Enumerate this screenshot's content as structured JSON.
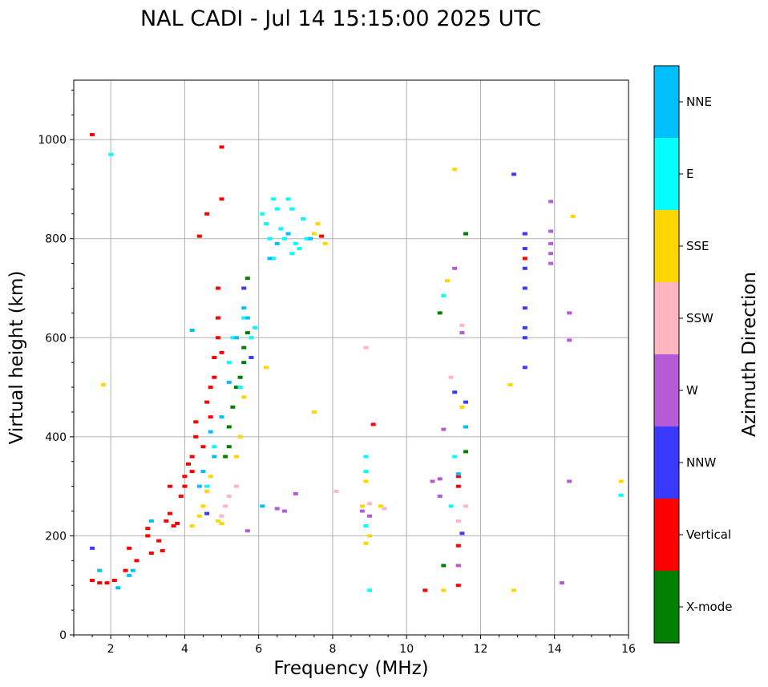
{
  "chart_data": {
    "type": "scatter",
    "title": "NAL CADI - Jul 14 15:15:00 2025 UTC",
    "xlabel": "Frequency (MHz)",
    "ylabel": "Virtual height (km)",
    "xlim": [
      1,
      16
    ],
    "ylim": [
      0,
      1120
    ],
    "xticks": [
      2,
      4,
      6,
      8,
      10,
      12,
      14,
      16
    ],
    "yticks": [
      0,
      200,
      400,
      600,
      800,
      1000
    ],
    "grid": true,
    "colorbar": {
      "label": "Azimuth Direction",
      "categories": [
        {
          "name": "X-mode",
          "color": "#008000"
        },
        {
          "name": "Vertical",
          "color": "#ff0000"
        },
        {
          "name": "NNW",
          "color": "#3a3aff"
        },
        {
          "name": "W",
          "color": "#b65ad6"
        },
        {
          "name": "SSW",
          "color": "#ffb6c1"
        },
        {
          "name": "SSE",
          "color": "#ffd700"
        },
        {
          "name": "E",
          "color": "#00ffff"
        },
        {
          "name": "NNE",
          "color": "#00bfff"
        }
      ]
    },
    "series": [
      {
        "name": "Vertical",
        "points": [
          [
            1.5,
            1010
          ],
          [
            1.5,
            110
          ],
          [
            1.7,
            105
          ],
          [
            1.9,
            105
          ],
          [
            2.1,
            110
          ],
          [
            2.4,
            130
          ],
          [
            2.5,
            175
          ],
          [
            2.7,
            150
          ],
          [
            3.0,
            200
          ],
          [
            3.0,
            215
          ],
          [
            3.1,
            165
          ],
          [
            3.3,
            190
          ],
          [
            3.4,
            170
          ],
          [
            3.5,
            230
          ],
          [
            3.6,
            245
          ],
          [
            3.6,
            300
          ],
          [
            3.7,
            220
          ],
          [
            3.8,
            225
          ],
          [
            3.9,
            280
          ],
          [
            4.0,
            300
          ],
          [
            4.0,
            320
          ],
          [
            4.1,
            345
          ],
          [
            4.2,
            360
          ],
          [
            4.2,
            330
          ],
          [
            4.3,
            400
          ],
          [
            4.3,
            430
          ],
          [
            4.4,
            805
          ],
          [
            4.5,
            380
          ],
          [
            4.6,
            470
          ],
          [
            4.6,
            850
          ],
          [
            4.7,
            440
          ],
          [
            4.7,
            500
          ],
          [
            4.8,
            520
          ],
          [
            4.8,
            560
          ],
          [
            4.9,
            600
          ],
          [
            4.9,
            640
          ],
          [
            4.9,
            700
          ],
          [
            5.0,
            880
          ],
          [
            5.0,
            985
          ],
          [
            5.0,
            570
          ],
          [
            7.7,
            805
          ],
          [
            9.1,
            425
          ],
          [
            10.5,
            90
          ],
          [
            11.4,
            320
          ],
          [
            11.4,
            300
          ],
          [
            11.4,
            180
          ],
          [
            11.4,
            140
          ],
          [
            11.4,
            100
          ],
          [
            13.2,
            810
          ],
          [
            13.2,
            760
          ]
        ]
      },
      {
        "name": "X-mode",
        "points": [
          [
            5.2,
            420
          ],
          [
            5.3,
            460
          ],
          [
            5.4,
            500
          ],
          [
            5.5,
            520
          ],
          [
            5.6,
            550
          ],
          [
            5.6,
            580
          ],
          [
            5.7,
            610
          ],
          [
            5.7,
            720
          ],
          [
            5.2,
            380
          ],
          [
            5.1,
            360
          ],
          [
            10.9,
            650
          ],
          [
            11.0,
            140
          ],
          [
            11.6,
            370
          ],
          [
            11.6,
            810
          ]
        ]
      },
      {
        "name": "NNW",
        "points": [
          [
            5.6,
            700
          ],
          [
            5.8,
            560
          ],
          [
            13.2,
            810
          ],
          [
            13.2,
            780
          ],
          [
            13.2,
            740
          ],
          [
            13.2,
            700
          ],
          [
            13.2,
            660
          ],
          [
            13.2,
            620
          ],
          [
            13.2,
            600
          ],
          [
            13.2,
            540
          ],
          [
            12.9,
            930
          ],
          [
            11.5,
            205
          ],
          [
            11.6,
            470
          ],
          [
            11.3,
            490
          ],
          [
            4.6,
            245
          ],
          [
            1.5,
            175
          ]
        ]
      },
      {
        "name": "W",
        "points": [
          [
            6.5,
            255
          ],
          [
            6.7,
            250
          ],
          [
            7.0,
            285
          ],
          [
            8.8,
            250
          ],
          [
            9.0,
            240
          ],
          [
            10.7,
            310
          ],
          [
            10.9,
            315
          ],
          [
            10.9,
            280
          ],
          [
            11.0,
            415
          ],
          [
            11.3,
            740
          ],
          [
            11.5,
            610
          ],
          [
            13.9,
            815
          ],
          [
            13.9,
            790
          ],
          [
            13.9,
            770
          ],
          [
            13.9,
            750
          ],
          [
            13.9,
            875
          ],
          [
            14.4,
            650
          ],
          [
            14.4,
            595
          ],
          [
            14.4,
            310
          ],
          [
            14.2,
            105
          ],
          [
            11.4,
            140
          ],
          [
            5.7,
            210
          ]
        ]
      },
      {
        "name": "SSW",
        "points": [
          [
            5.2,
            280
          ],
          [
            5.4,
            300
          ],
          [
            5.1,
            260
          ],
          [
            8.1,
            290
          ],
          [
            8.9,
            580
          ],
          [
            9.0,
            265
          ],
          [
            9.4,
            255
          ],
          [
            11.2,
            520
          ],
          [
            11.5,
            625
          ],
          [
            11.6,
            260
          ],
          [
            11.4,
            230
          ],
          [
            5.0,
            240
          ]
        ]
      },
      {
        "name": "SSE",
        "points": [
          [
            4.2,
            220
          ],
          [
            4.4,
            240
          ],
          [
            4.5,
            260
          ],
          [
            4.6,
            290
          ],
          [
            4.7,
            320
          ],
          [
            4.9,
            230
          ],
          [
            5.0,
            225
          ],
          [
            5.4,
            360
          ],
          [
            5.5,
            400
          ],
          [
            5.6,
            480
          ],
          [
            6.2,
            540
          ],
          [
            7.5,
            450
          ],
          [
            7.6,
            830
          ],
          [
            7.8,
            790
          ],
          [
            7.5,
            810
          ],
          [
            8.9,
            310
          ],
          [
            8.9,
            185
          ],
          [
            9.0,
            200
          ],
          [
            8.8,
            260
          ],
          [
            9.3,
            260
          ],
          [
            11.0,
            90
          ],
          [
            11.1,
            715
          ],
          [
            11.3,
            940
          ],
          [
            11.5,
            460
          ],
          [
            12.8,
            505
          ],
          [
            12.9,
            90
          ],
          [
            14.5,
            845
          ],
          [
            15.8,
            310
          ],
          [
            1.8,
            505
          ]
        ]
      },
      {
        "name": "E",
        "points": [
          [
            6.1,
            850
          ],
          [
            6.2,
            830
          ],
          [
            6.3,
            800
          ],
          [
            6.4,
            880
          ],
          [
            6.5,
            860
          ],
          [
            6.6,
            820
          ],
          [
            6.7,
            800
          ],
          [
            6.8,
            880
          ],
          [
            6.9,
            860
          ],
          [
            7.0,
            790
          ],
          [
            7.1,
            780
          ],
          [
            7.2,
            840
          ],
          [
            7.3,
            800
          ],
          [
            6.4,
            760
          ],
          [
            6.9,
            770
          ],
          [
            5.2,
            550
          ],
          [
            5.3,
            600
          ],
          [
            5.5,
            500
          ],
          [
            5.6,
            640
          ],
          [
            5.8,
            600
          ],
          [
            5.9,
            620
          ],
          [
            8.9,
            360
          ],
          [
            8.9,
            330
          ],
          [
            9.0,
            90
          ],
          [
            8.9,
            220
          ],
          [
            11.0,
            685
          ],
          [
            11.3,
            360
          ],
          [
            11.2,
            260
          ],
          [
            15.8,
            282
          ],
          [
            4.8,
            380
          ],
          [
            4.6,
            300
          ],
          [
            2.0,
            970
          ]
        ]
      },
      {
        "name": "NNE",
        "points": [
          [
            4.2,
            615
          ],
          [
            4.4,
            300
          ],
          [
            4.5,
            330
          ],
          [
            4.7,
            410
          ],
          [
            4.8,
            360
          ],
          [
            5.0,
            440
          ],
          [
            5.2,
            510
          ],
          [
            5.4,
            600
          ],
          [
            5.6,
            660
          ],
          [
            5.7,
            640
          ],
          [
            6.1,
            260
          ],
          [
            6.3,
            760
          ],
          [
            6.5,
            790
          ],
          [
            6.8,
            810
          ],
          [
            7.4,
            800
          ],
          [
            2.2,
            95
          ],
          [
            2.5,
            120
          ],
          [
            3.1,
            230
          ],
          [
            11.4,
            325
          ],
          [
            11.6,
            420
          ],
          [
            1.7,
            130
          ],
          [
            2.6,
            130
          ]
        ]
      }
    ]
  }
}
